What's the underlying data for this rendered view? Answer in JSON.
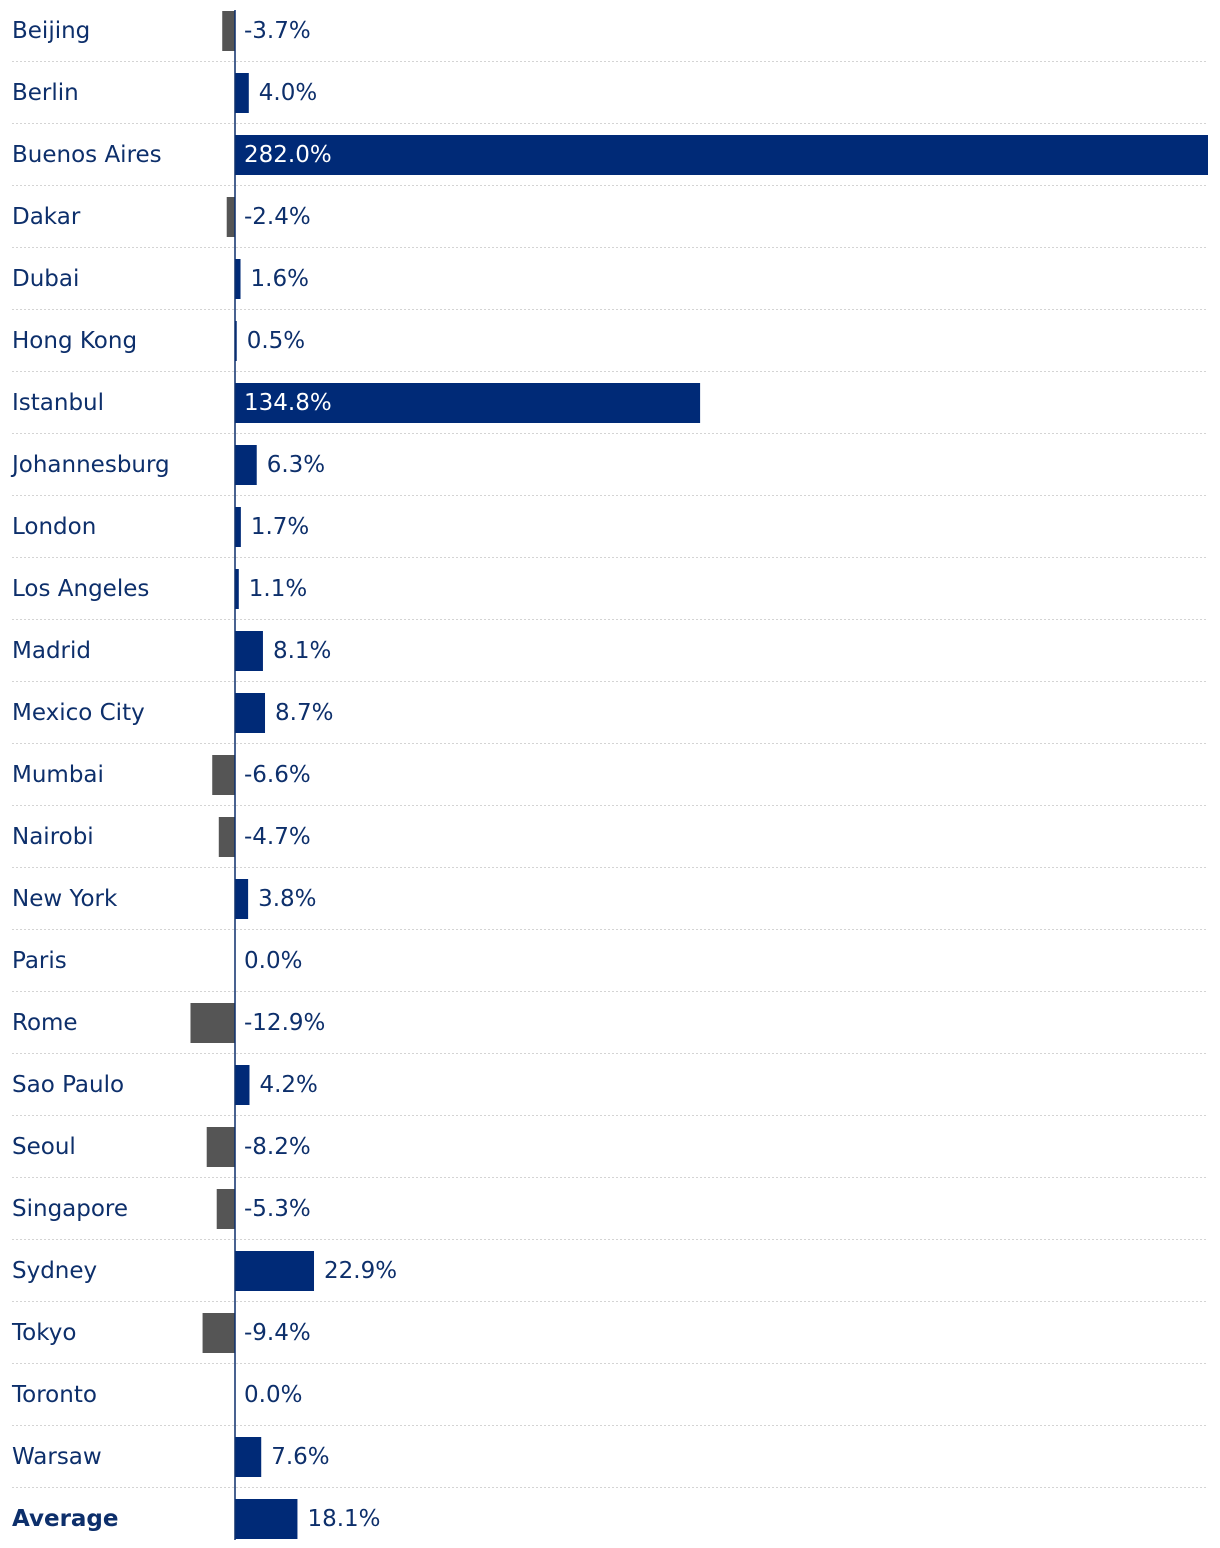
{
  "colors": {
    "positive": "#002a77",
    "negative": "#555555",
    "text": "#0d2f6b",
    "text_on_bar": "#ffffff",
    "separator": "#d4d4d4",
    "axis": "#0d2f6b"
  },
  "chart_data": {
    "type": "bar",
    "orientation": "horizontal",
    "categories": [
      "Beijing",
      "Berlin",
      "Buenos Aires",
      "Dakar",
      "Dubai",
      "Hong Kong",
      "Istanbul",
      "Johannesburg",
      "London",
      "Los Angeles",
      "Madrid",
      "Mexico City",
      "Mumbai",
      "Nairobi",
      "New York",
      "Paris",
      "Rome",
      "Sao Paulo",
      "Seoul",
      "Singapore",
      "Sydney",
      "Tokyo",
      "Toronto",
      "Warsaw",
      "Average"
    ],
    "values": [
      -3.7,
      4.0,
      282.0,
      -2.4,
      1.6,
      0.5,
      134.8,
      6.3,
      1.7,
      1.1,
      8.1,
      8.7,
      -6.6,
      -4.7,
      3.8,
      0.0,
      -12.9,
      4.2,
      -8.2,
      -5.3,
      22.9,
      -9.4,
      0.0,
      7.6,
      18.1
    ],
    "value_labels": [
      "-3.7%",
      "4.0%",
      "282.0%",
      "-2.4%",
      "1.6%",
      "0.5%",
      "134.8%",
      "6.3%",
      "1.7%",
      "1.1%",
      "8.1%",
      "8.7%",
      "-6.6%",
      "-4.7%",
      "3.8%",
      "0.0%",
      "-12.9%",
      "4.2%",
      "-8.2%",
      "-5.3%",
      "22.9%",
      "-9.4%",
      "0.0%",
      "7.6%",
      "18.1%"
    ],
    "bold_categories": [
      "Average"
    ],
    "xlim": [
      -12.9,
      282.0
    ],
    "grid": false,
    "title": "",
    "xlabel": "",
    "ylabel": ""
  }
}
